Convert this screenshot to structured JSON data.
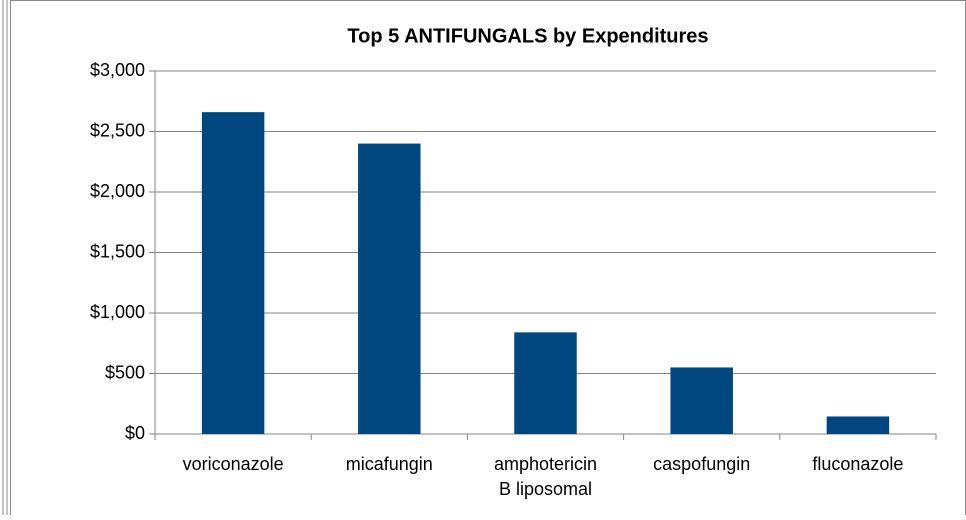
{
  "chart_data": {
    "type": "bar",
    "title": "Top 5 ANTIFUNGALS by Expenditures",
    "categories": [
      "voriconazole",
      "micafungin",
      "amphotericin B liposomal",
      "caspofungin",
      "fluconazole"
    ],
    "values": [
      2660,
      2400,
      840,
      550,
      145
    ],
    "color": "#00467f",
    "ylim": [
      0,
      3000
    ],
    "yticks": [
      {
        "value": 0,
        "label": "$0"
      },
      {
        "value": 500,
        "label": "$500"
      },
      {
        "value": 1000,
        "label": "$1,000"
      },
      {
        "value": 1500,
        "label": "$1,500"
      },
      {
        "value": 2000,
        "label": "$2,000"
      },
      {
        "value": 2500,
        "label": "$2,500"
      },
      {
        "value": 3000,
        "label": "$3,000"
      }
    ],
    "grid": true
  }
}
